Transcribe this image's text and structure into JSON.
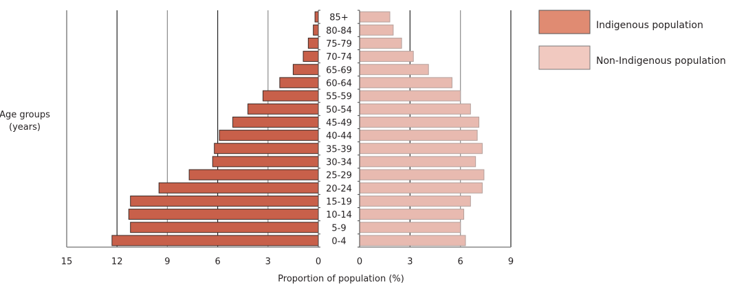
{
  "chart_data": {
    "type": "bar",
    "subtype": "population-pyramid",
    "title": "",
    "xlabel": "Proportion of population (%)",
    "ylabel": "Age groups (years)",
    "ylabel_lines": [
      "Age groups",
      "(years)"
    ],
    "categories": [
      "85+",
      "80-84",
      "75-79",
      "70-74",
      "65-69",
      "60-64",
      "55-59",
      "50-54",
      "45-49",
      "40-44",
      "35-39",
      "30-34",
      "25-29",
      "20-24",
      "15-19",
      "10-14",
      "5-9",
      "0-4"
    ],
    "series": [
      {
        "name": "Indigenous population",
        "side": "left",
        "color": "#c8604a",
        "legend_color": "#e08b72",
        "values": [
          0.2,
          0.3,
          0.6,
          0.9,
          1.5,
          2.3,
          3.3,
          4.2,
          5.1,
          5.9,
          6.2,
          6.3,
          7.7,
          9.5,
          11.2,
          11.3,
          11.2,
          12.3
        ]
      },
      {
        "name": "Non-Indigenous population",
        "side": "right",
        "color": "#e8bab0",
        "legend_color": "#f1c9c0",
        "values": [
          1.8,
          2.0,
          2.5,
          3.2,
          4.1,
          5.5,
          6.0,
          6.6,
          7.1,
          7.0,
          7.3,
          6.9,
          7.4,
          7.3,
          6.6,
          6.2,
          6.0,
          6.3
        ]
      }
    ],
    "left_axis": {
      "range": [
        0,
        15
      ],
      "ticks": [
        15,
        12,
        9,
        6,
        3,
        0
      ],
      "tick_labels": [
        "15",
        "12",
        "9",
        "6",
        "3",
        "0"
      ]
    },
    "right_axis": {
      "range": [
        0,
        9
      ],
      "ticks": [
        0,
        3,
        6,
        9
      ],
      "tick_labels": [
        "0",
        "3",
        "6",
        "9"
      ]
    },
    "grid": true,
    "legend_position": "top-right",
    "legend": [
      "Indigenous population",
      "Non-Indigenous population"
    ]
  }
}
